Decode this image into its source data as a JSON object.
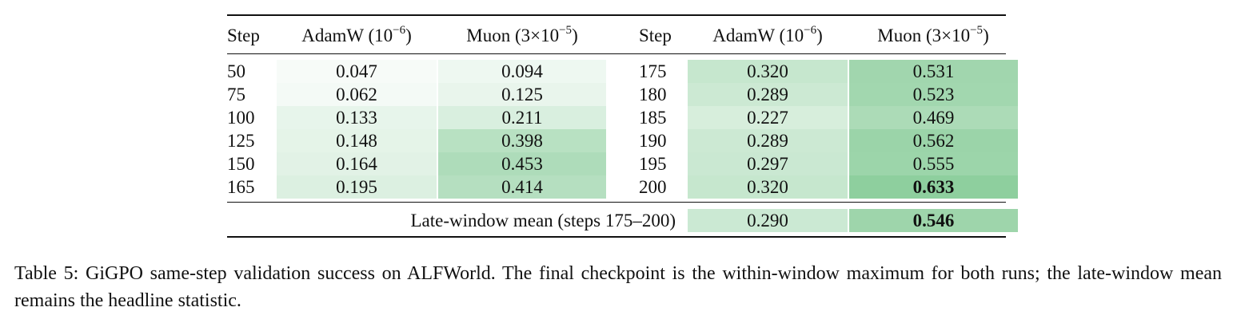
{
  "table": {
    "headers": {
      "step": "Step",
      "adamw_prefix": "AdamW (10",
      "adamw_exp": "−6",
      "adamw_suffix": ")",
      "muon_prefix": "Muon (3×10",
      "muon_exp": "−5",
      "muon_suffix": ")"
    },
    "left_rows": [
      {
        "step": "50",
        "adamw": "0.047",
        "muon": "0.094"
      },
      {
        "step": "75",
        "adamw": "0.062",
        "muon": "0.125"
      },
      {
        "step": "100",
        "adamw": "0.133",
        "muon": "0.211"
      },
      {
        "step": "125",
        "adamw": "0.148",
        "muon": "0.398"
      },
      {
        "step": "150",
        "adamw": "0.164",
        "muon": "0.453"
      },
      {
        "step": "165",
        "adamw": "0.195",
        "muon": "0.414"
      }
    ],
    "right_rows": [
      {
        "step": "175",
        "adamw": "0.320",
        "muon": "0.531"
      },
      {
        "step": "180",
        "adamw": "0.289",
        "muon": "0.523"
      },
      {
        "step": "185",
        "adamw": "0.227",
        "muon": "0.469"
      },
      {
        "step": "190",
        "adamw": "0.289",
        "muon": "0.562"
      },
      {
        "step": "195",
        "adamw": "0.297",
        "muon": "0.555"
      },
      {
        "step": "200",
        "adamw": "0.320",
        "muon": "0.633",
        "muon_bold": true
      }
    ],
    "mean": {
      "label": "Late-window mean (steps 175–200)",
      "adamw": "0.290",
      "muon": "0.546",
      "muon_bold": true
    },
    "heat_color": "#86cb97"
  },
  "caption": "Table 5: GiGPO same-step validation success on ALFWorld. The final checkpoint is the within-window maximum for both runs; the late-window mean remains the headline statistic."
}
